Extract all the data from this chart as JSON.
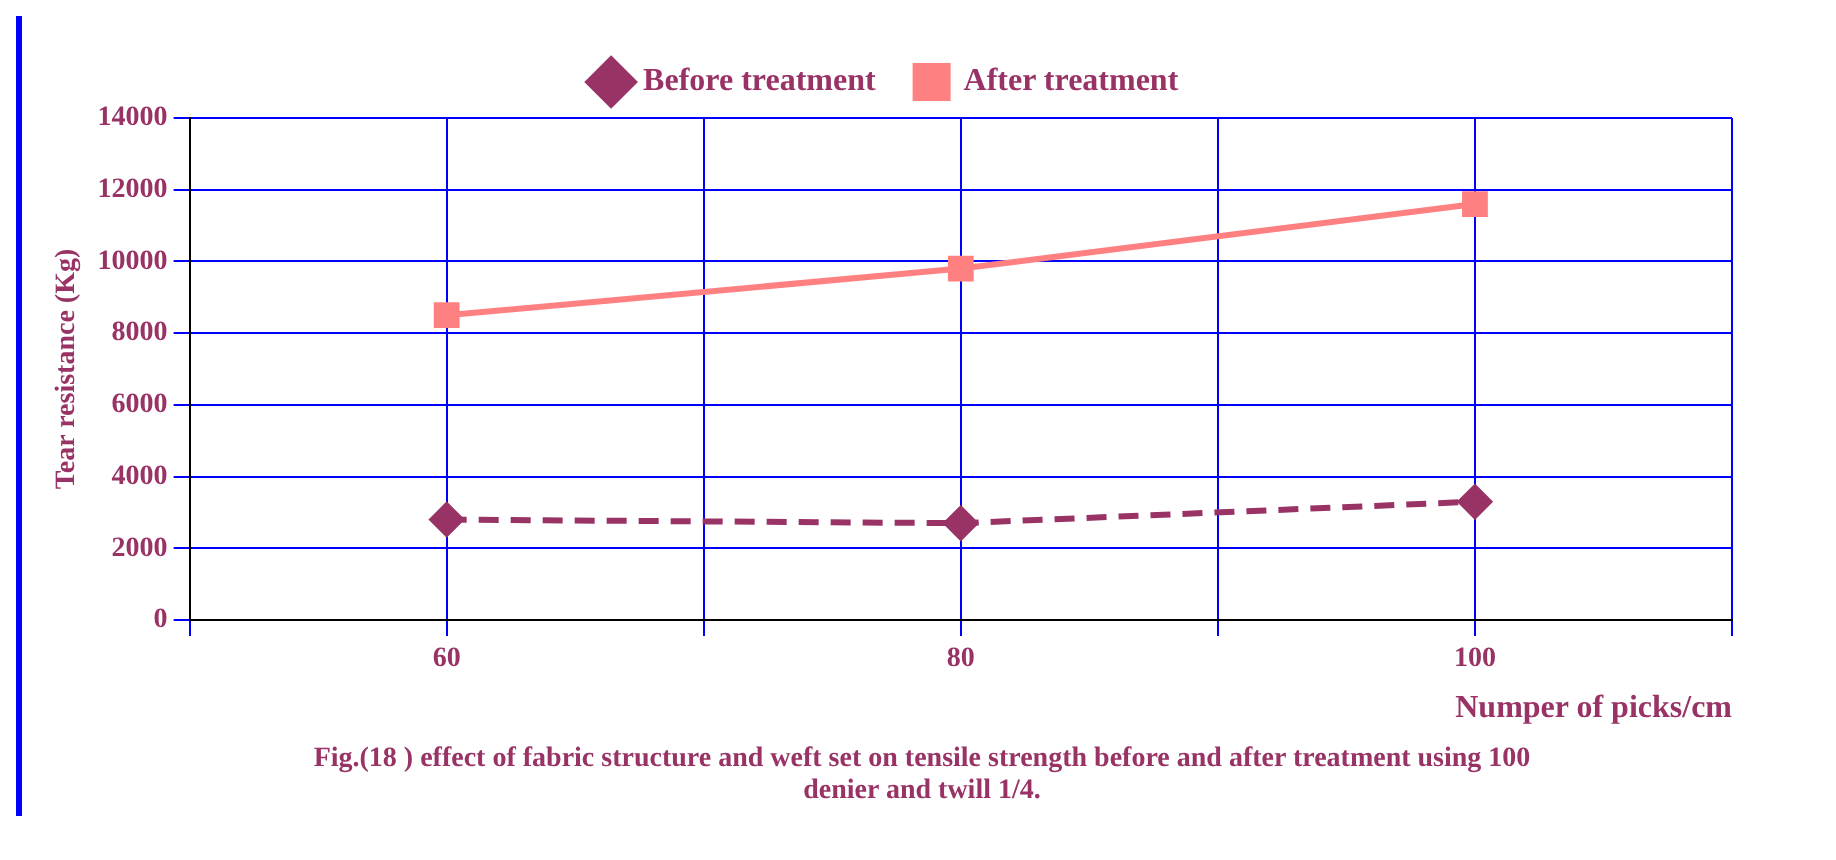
{
  "chart_data": {
    "type": "line",
    "xlabel": "Numper of picks/cm",
    "ylabel": "Tear resistance (Kg)",
    "x": [
      60,
      80,
      100
    ],
    "series": [
      {
        "name": "Before treatment",
        "color": "#993366",
        "values": [
          2800,
          2700,
          3300
        ],
        "marker": "diamond",
        "line_style": "dashed"
      },
      {
        "name": "After treatment",
        "color": "#ff8080",
        "values": [
          8500,
          9800,
          11600
        ],
        "marker": "square",
        "line_style": "solid"
      }
    ],
    "xlim": [
      50,
      110
    ],
    "xticks": [
      {
        "value": 50,
        "label": null
      },
      60,
      {
        "value": 70,
        "label": null
      },
      80,
      {
        "value": 90,
        "label": null
      },
      100,
      {
        "value": 110,
        "label": null
      }
    ],
    "ylim": [
      0,
      14000
    ],
    "yticks": [
      0,
      2000,
      4000,
      6000,
      8000,
      10000,
      12000,
      14000
    ],
    "grid": true,
    "legend": "top",
    "annotations": [
      "Fig.(18 ) effect of fabric structure and weft set on tensile strength before and after treatment using 100 denier and twill 1/4."
    ]
  }
}
